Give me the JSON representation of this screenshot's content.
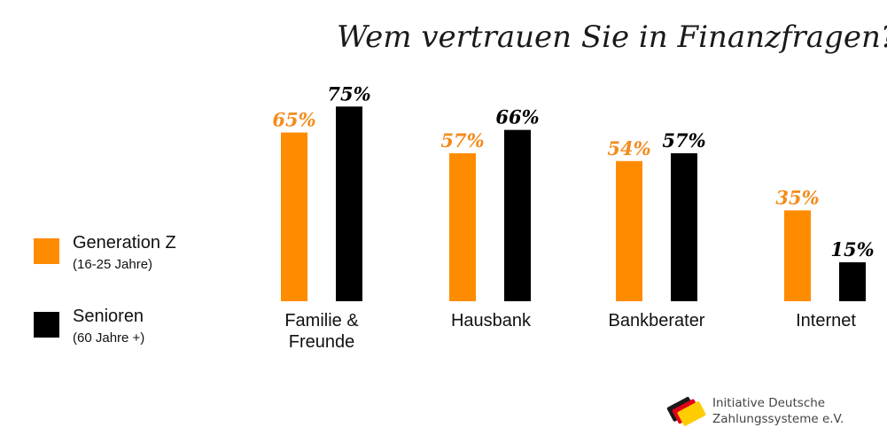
{
  "colors": {
    "generation_z": "#ff8c00",
    "senioren": "#000000",
    "value_label_orange": "#f28c1e"
  },
  "chart_data": {
    "type": "bar",
    "title": "Wem vertrauen Sie in Finanzfragen?",
    "categories": [
      "Familie &\nFreunde",
      "Hausbank",
      "Bankberater",
      "Internet"
    ],
    "series": [
      {
        "name": "Generation Z",
        "sub": "(16-25 Jahre)",
        "values": [
          65,
          57,
          54,
          35
        ],
        "labels": [
          "65%",
          "57%",
          "54%",
          "35%"
        ]
      },
      {
        "name": "Senioren",
        "sub": "(60 Jahre +)",
        "values": [
          75,
          66,
          57,
          15
        ],
        "labels": [
          "75%",
          "66%",
          "57%",
          "15%"
        ]
      }
    ],
    "ylim": [
      0,
      100
    ],
    "grid": false,
    "legend_position": "left"
  },
  "logo": {
    "text": "Initiative Deutsche\nZahlungssysteme e.V.",
    "icon": "ids-logo-icon"
  }
}
